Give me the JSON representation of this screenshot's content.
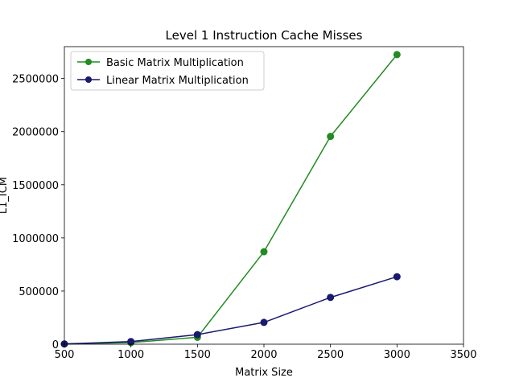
{
  "chart_data": {
    "type": "line",
    "title": "Level 1 Instruction Cache Misses",
    "xlabel": "Matrix Size",
    "ylabel": "L1_ICM",
    "xlim": [
      500,
      3500
    ],
    "ylim": [
      0,
      2800000
    ],
    "xticks": [
      500,
      1000,
      1500,
      2000,
      2500,
      3000,
      3500
    ],
    "yticks": [
      0,
      500000,
      1000000,
      1500000,
      2000000,
      2500000
    ],
    "grid": false,
    "legend_position": "top-left",
    "series": [
      {
        "name": "Basic Matrix Multiplication",
        "color": "#228B22",
        "x": [
          500,
          1000,
          1500,
          2000,
          2500,
          3000
        ],
        "values": [
          2000,
          15000,
          65000,
          870000,
          1955000,
          2725000
        ]
      },
      {
        "name": "Linear Matrix Multiplication",
        "color": "#191970",
        "x": [
          500,
          1000,
          1500,
          2000,
          2500,
          3000
        ],
        "values": [
          2000,
          25000,
          90000,
          205000,
          440000,
          635000
        ]
      }
    ]
  }
}
